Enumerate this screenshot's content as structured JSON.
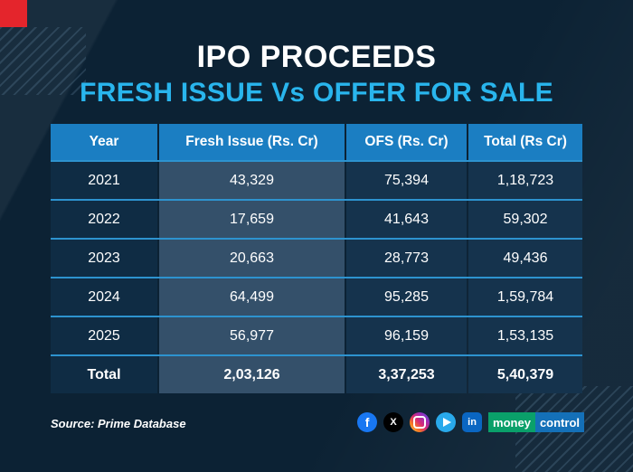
{
  "header": {
    "title": "IPO PROCEEDS",
    "subtitle": "FRESH ISSUE Vs OFFER FOR SALE"
  },
  "chart_data": {
    "type": "table",
    "title": "IPO PROCEEDS",
    "subtitle": "FRESH ISSUE Vs OFFER FOR SALE",
    "columns": [
      "Year",
      "Fresh Issue (Rs. Cr)",
      "OFS (Rs. Cr)",
      "Total (Rs Cr)"
    ],
    "rows": [
      [
        "2021",
        "43,329",
        "75,394",
        "1,18,723"
      ],
      [
        "2022",
        "17,659",
        "41,643",
        "59,302"
      ],
      [
        "2023",
        "20,663",
        "28,773",
        "49,436"
      ],
      [
        "2024",
        "64,499",
        "95,285",
        "1,59,784"
      ],
      [
        "2025",
        "56,977",
        "96,159",
        "1,53,135"
      ],
      [
        "Total",
        "2,03,126",
        "3,37,253",
        "5,40,379"
      ]
    ],
    "source": "Source: Prime Database"
  },
  "footer": {
    "source": "Source: Prime Database",
    "social": [
      {
        "name": "facebook-icon",
        "glyph": "f"
      },
      {
        "name": "x-icon",
        "glyph": "X"
      },
      {
        "name": "instagram-icon",
        "glyph": ""
      },
      {
        "name": "telegram-icon",
        "glyph": ""
      },
      {
        "name": "linkedin-icon",
        "glyph": "in"
      }
    ],
    "brand": {
      "part1": "money",
      "part2": "control"
    }
  },
  "colors": {
    "background": "#0c2234",
    "header_blue": "#1b7ec2",
    "subtitle_cyan": "#29b5ed",
    "accent_red": "#e4252c",
    "row_line": "#2d93cf",
    "fresh_column_bg": "#34506a",
    "brand_green": "#0aa06a",
    "brand_blue": "#1470b8"
  }
}
